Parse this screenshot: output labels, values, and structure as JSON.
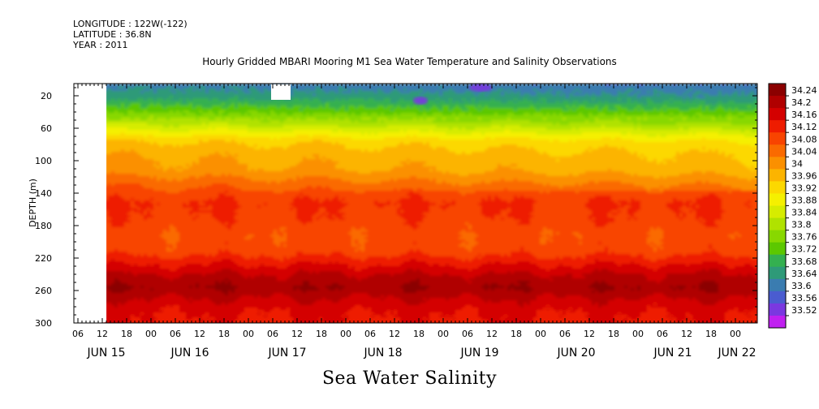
{
  "header": {
    "longitude": "LONGITUDE : 122W(-122)",
    "latitude": "LATITUDE : 36.8N",
    "year": "YEAR : 2011"
  },
  "chart_data": {
    "type": "heatmap",
    "title": "Hourly Gridded MBARI Mooring M1 Sea Water Temperature and Salinity Observations",
    "xlabel": "Sea Water Salinity",
    "ylabel": "DEPTH (m)",
    "y_ticks": [
      20,
      60,
      100,
      140,
      180,
      220,
      260,
      300
    ],
    "ylim": [
      300,
      5
    ],
    "x_hour_labels": [
      "06",
      "12",
      "18",
      "00",
      "06",
      "12",
      "18",
      "00",
      "06",
      "12",
      "18",
      "00",
      "06",
      "12",
      "18",
      "00",
      "06",
      "12",
      "18",
      "00",
      "06",
      "12",
      "18",
      "00",
      "06",
      "12",
      "18",
      "00",
      "06",
      "12",
      "18",
      "00",
      "06",
      "12",
      "18",
      "00",
      "06"
    ],
    "x_day_labels": [
      "JUN 15",
      "JUN 16",
      "JUN 17",
      "JUN 18",
      "JUN 19",
      "JUN 20",
      "JUN 21",
      "JUN 22"
    ],
    "colorbar": {
      "levels": [
        "34.24",
        "34.2",
        "34.16",
        "34.12",
        "34.08",
        "34.04",
        "34",
        "33.96",
        "33.92",
        "33.88",
        "33.84",
        "33.8",
        "33.76",
        "33.72",
        "33.68",
        "33.64",
        "33.6",
        "33.56",
        "33.52"
      ],
      "colors": [
        "#8b0000",
        "#b00000",
        "#d40000",
        "#ee1c00",
        "#f84400",
        "#fa6a00",
        "#fb9000",
        "#fcb400",
        "#fcd800",
        "#f5f000",
        "#d6ec00",
        "#b0e200",
        "#88d800",
        "#5cc800",
        "#34b050",
        "#2e9a78",
        "#3a7cb0",
        "#4a5cd0",
        "#7a38e0",
        "#c020f0"
      ],
      "range": [
        33.52,
        34.28
      ]
    },
    "profile_depths": [
      5,
      20,
      40,
      60,
      75,
      90,
      110,
      130,
      150,
      170,
      190,
      210,
      225,
      240,
      255,
      270,
      285,
      300
    ],
    "profile_values": [
      33.66,
      33.7,
      33.79,
      33.9,
      33.98,
      34.01,
      34.03,
      34.09,
      34.13,
      34.12,
      34.1,
      34.11,
      34.16,
      34.21,
      34.24,
      34.2,
      34.17,
      34.16
    ],
    "data_start": "JUN 15 13:00",
    "missing_blocks": [
      "JUN 15 05:00 – 13:00 all depths",
      "JUN 17 ~08:00 – 12:00 near surface"
    ]
  }
}
